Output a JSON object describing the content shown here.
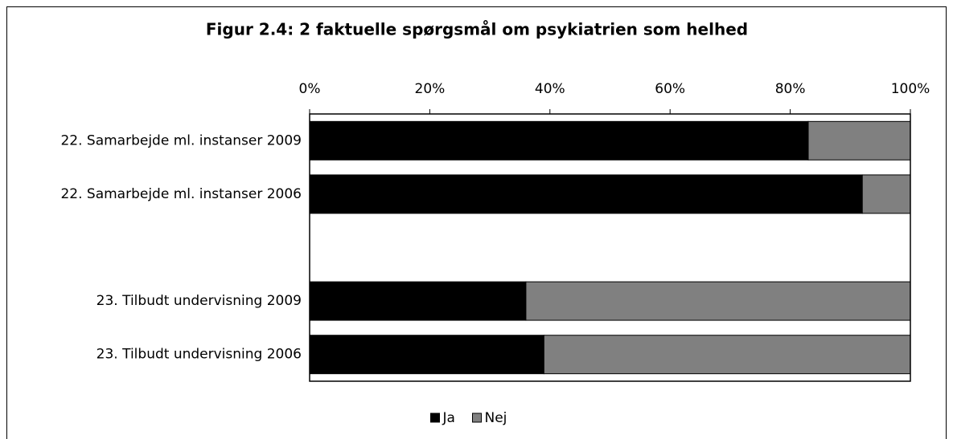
{
  "chart_data": {
    "type": "stacked_bar_horizontal",
    "title": "Figur 2.4: 2 faktuelle spørgsmål om psykiatrien som helhed",
    "categories": [
      "22. Samarbejde ml. instanser 2009",
      "22. Samarbejde ml. instanser 2006",
      null,
      "23. Tilbudt undervisning 2009",
      "23. Tilbudt undervisning 2006"
    ],
    "series": [
      {
        "name": "Ja",
        "color": "#000000",
        "values": [
          83,
          92,
          null,
          36,
          39
        ]
      },
      {
        "name": "Nej",
        "color": "#808080",
        "values": [
          17,
          8,
          null,
          64,
          61
        ]
      }
    ],
    "xlim": [
      0,
      100
    ],
    "xticks": [
      {
        "value": 0,
        "label": "0%"
      },
      {
        "value": 20,
        "label": "20%"
      },
      {
        "value": 40,
        "label": "40%"
      },
      {
        "value": 60,
        "label": "60%"
      },
      {
        "value": 80,
        "label": "80%"
      },
      {
        "value": 100,
        "label": "100%"
      }
    ],
    "legend": "bottom"
  }
}
